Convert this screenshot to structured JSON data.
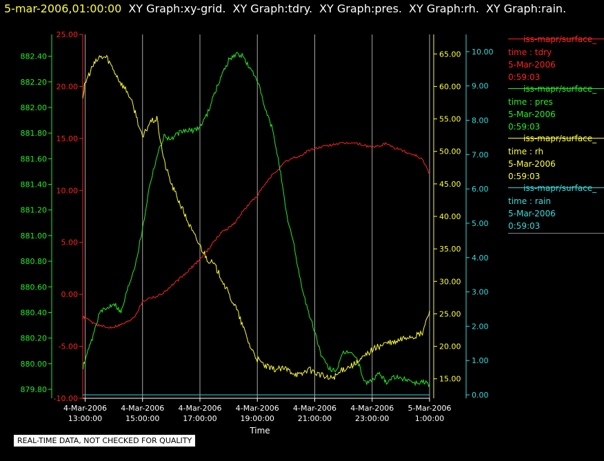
{
  "header": {
    "timestamp": "5-mar-2006,01:00:00",
    "titles": [
      "XY Graph:xy-grid.",
      "XY Graph:tdry.",
      "XY Graph:pres.",
      "XY Graph:rh.",
      "XY Graph:rain."
    ]
  },
  "legend": [
    {
      "name": "iss-mapr/surface_",
      "field": "time : tdry",
      "date": "5-Mar-2006",
      "time": "0:59:03",
      "color": "#ff2222"
    },
    {
      "name": "iss-mapr/surface_",
      "field": "time : pres",
      "date": "5-Mar-2006",
      "time": "0:59:03",
      "color": "#22ee22"
    },
    {
      "name": "iss-mapr/surface_",
      "field": "time : rh",
      "date": "5-Mar-2006",
      "time": "0:59:03",
      "color": "#ffff33"
    },
    {
      "name": "iss-mapr/surface_",
      "field": "time : rain",
      "date": "5-Mar-2006",
      "time": "0:59:03",
      "color": "#33dddd"
    }
  ],
  "disclaimer": "REAL-TIME DATA, NOT CHECKED FOR QUALITY",
  "chart_data": {
    "type": "line",
    "xlabel": "Time",
    "xlim": [
      "4-Mar-2006 12:55:00",
      "5-Mar-2006 01:00:00"
    ],
    "x_ticks": [
      {
        "date": "4-Mar-2006",
        "time": "13:00:00"
      },
      {
        "date": "4-Mar-2006",
        "time": "15:00:00"
      },
      {
        "date": "4-Mar-2006",
        "time": "17:00:00"
      },
      {
        "date": "4-Mar-2006",
        "time": "19:00:00"
      },
      {
        "date": "4-Mar-2006",
        "time": "21:00:00"
      },
      {
        "date": "4-Mar-2006",
        "time": "23:00:00"
      },
      {
        "date": "5-Mar-2006",
        "time": "1:00:00"
      }
    ],
    "grid": "vertical",
    "x_hours": [
      12.92,
      13.0,
      13.25,
      13.5,
      13.75,
      14.0,
      14.25,
      14.5,
      14.75,
      15.0,
      15.25,
      15.5,
      15.75,
      16.0,
      16.25,
      16.5,
      16.75,
      17.0,
      17.25,
      17.5,
      17.75,
      18.0,
      18.25,
      18.5,
      18.75,
      19.0,
      19.25,
      19.5,
      19.75,
      20.0,
      20.25,
      20.5,
      20.75,
      21.0,
      21.25,
      21.5,
      21.75,
      22.0,
      22.25,
      22.5,
      22.75,
      23.0,
      23.25,
      23.5,
      23.75,
      24.0,
      24.25,
      24.5,
      24.75,
      25.0
    ],
    "axes": [
      {
        "id": "tdry",
        "color": "#ff2222",
        "ylim": [
          -10,
          25
        ],
        "ticks": [
          "-10.00",
          "-5.00",
          "0.00",
          "5.00",
          "10.00",
          "15.00",
          "20.00",
          "25.00"
        ]
      },
      {
        "id": "pres",
        "color": "#22ee22",
        "ylim": [
          879.73,
          882.57
        ],
        "ticks": [
          "879.80",
          "880.00",
          "880.20",
          "880.40",
          "880.60",
          "880.80",
          "881.00",
          "881.20",
          "881.40",
          "881.60",
          "881.80",
          "882.00",
          "882.20",
          "882.40"
        ]
      },
      {
        "id": "rh",
        "color": "#ffff33",
        "ylim": [
          12,
          68
        ],
        "ticks": [
          "15.00",
          "20.00",
          "25.00",
          "30.00",
          "35.00",
          "40.00",
          "45.00",
          "50.00",
          "55.00",
          "60.00",
          "65.00"
        ]
      },
      {
        "id": "rain",
        "color": "#33dddd",
        "ylim": [
          -0.1,
          10.5
        ],
        "ticks": [
          "0.00",
          "1.00",
          "2.00",
          "3.00",
          "4.00",
          "5.00",
          "6.00",
          "7.00",
          "8.00",
          "9.00",
          "10.00"
        ]
      }
    ],
    "series": [
      {
        "name": "time : tdry",
        "axis": "tdry",
        "color": "#ff2222",
        "values": [
          -2.2,
          -2.3,
          -2.7,
          -3.0,
          -3.2,
          -3.1,
          -2.9,
          -2.6,
          -2.0,
          -0.7,
          -0.3,
          -0.2,
          0.2,
          0.8,
          1.4,
          2.0,
          2.7,
          3.4,
          4.2,
          5.1,
          6.0,
          6.4,
          7.0,
          8.0,
          8.8,
          9.5,
          10.5,
          11.4,
          12.1,
          12.8,
          13.1,
          13.3,
          13.8,
          14.0,
          14.2,
          14.3,
          14.5,
          14.5,
          14.6,
          14.5,
          14.3,
          14.2,
          14.2,
          14.6,
          14.1,
          13.9,
          13.6,
          13.4,
          13.0,
          11.6
        ]
      },
      {
        "name": "time : pres",
        "axis": "pres",
        "color": "#22ee22",
        "values": [
          879.97,
          880.02,
          880.2,
          880.4,
          880.43,
          880.48,
          880.4,
          880.6,
          880.78,
          881.05,
          881.4,
          881.62,
          881.78,
          881.75,
          881.8,
          881.82,
          881.82,
          881.85,
          881.95,
          882.1,
          882.25,
          882.37,
          882.42,
          882.4,
          882.3,
          882.22,
          882.0,
          881.85,
          881.58,
          881.18,
          880.95,
          880.65,
          880.42,
          880.25,
          880.05,
          879.96,
          879.95,
          880.08,
          880.1,
          880.02,
          879.85,
          879.87,
          879.92,
          879.86,
          879.9,
          879.88,
          879.88,
          879.85,
          879.86,
          879.84
        ]
      },
      {
        "name": "time : rh",
        "axis": "rh",
        "color": "#ffff33",
        "values": [
          58.5,
          60.5,
          63.0,
          64.5,
          64.5,
          62.5,
          60.5,
          59.0,
          56.0,
          52.0,
          54.5,
          55.0,
          48.5,
          45.0,
          42.5,
          40.0,
          37.5,
          35.5,
          33.5,
          32.5,
          30.5,
          28.0,
          26.0,
          23.0,
          20.0,
          18.0,
          17.0,
          16.5,
          16.5,
          16.5,
          16.0,
          15.5,
          16.5,
          16.0,
          15.5,
          15.0,
          15.5,
          16.5,
          17.0,
          17.5,
          18.5,
          19.5,
          20.0,
          20.5,
          20.5,
          21.0,
          21.5,
          21.5,
          22.0,
          25.5
        ]
      },
      {
        "name": "time : rain",
        "axis": "rain",
        "color": "#33dddd",
        "values": [
          0.0,
          0.0,
          0.0,
          0.0,
          0.0,
          0.0,
          0.0,
          0.0,
          0.0,
          0.0,
          0.0,
          0.0,
          0.0,
          0.0,
          0.0,
          0.0,
          0.0,
          0.0,
          0.0,
          0.0,
          0.0,
          0.0,
          0.0,
          0.0,
          0.0,
          0.0,
          0.0,
          0.0,
          0.0,
          0.0,
          0.0,
          0.0,
          0.0,
          0.0,
          0.0,
          0.0,
          0.0,
          0.0,
          0.0,
          0.0,
          0.0,
          0.0,
          0.0,
          0.0,
          0.0,
          0.0,
          0.0,
          0.0,
          0.0,
          0.0
        ]
      }
    ]
  }
}
